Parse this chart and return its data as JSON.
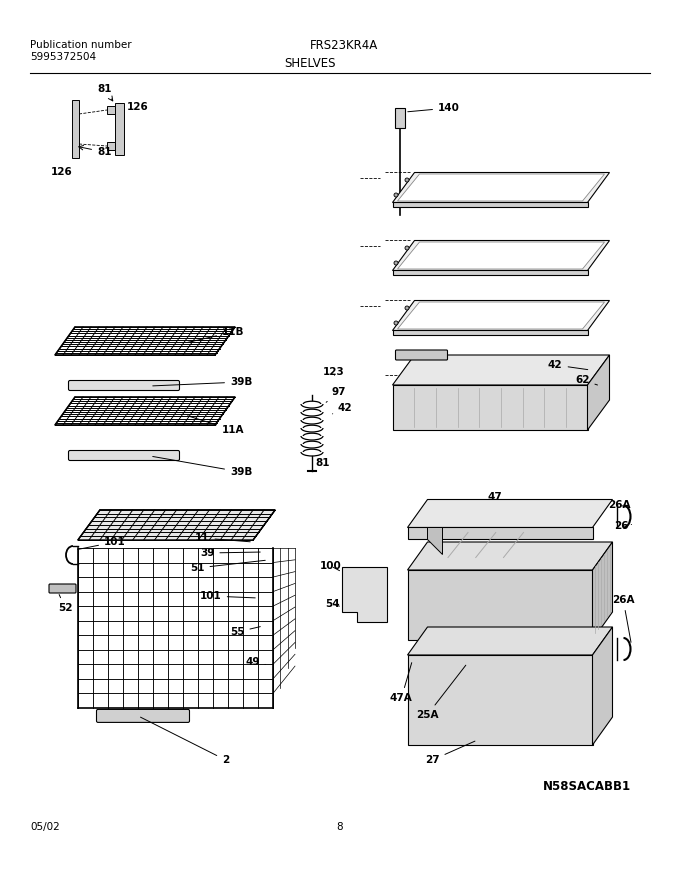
{
  "title": "FRS23KR4A",
  "subtitle": "SHELVES",
  "pub_label": "Publication number",
  "pub_number": "5995372504",
  "date": "05/02",
  "page": "8",
  "model_code": "N58SACABB1",
  "bg_color": "#ffffff",
  "line_color": "#000000",
  "text_color": "#000000"
}
